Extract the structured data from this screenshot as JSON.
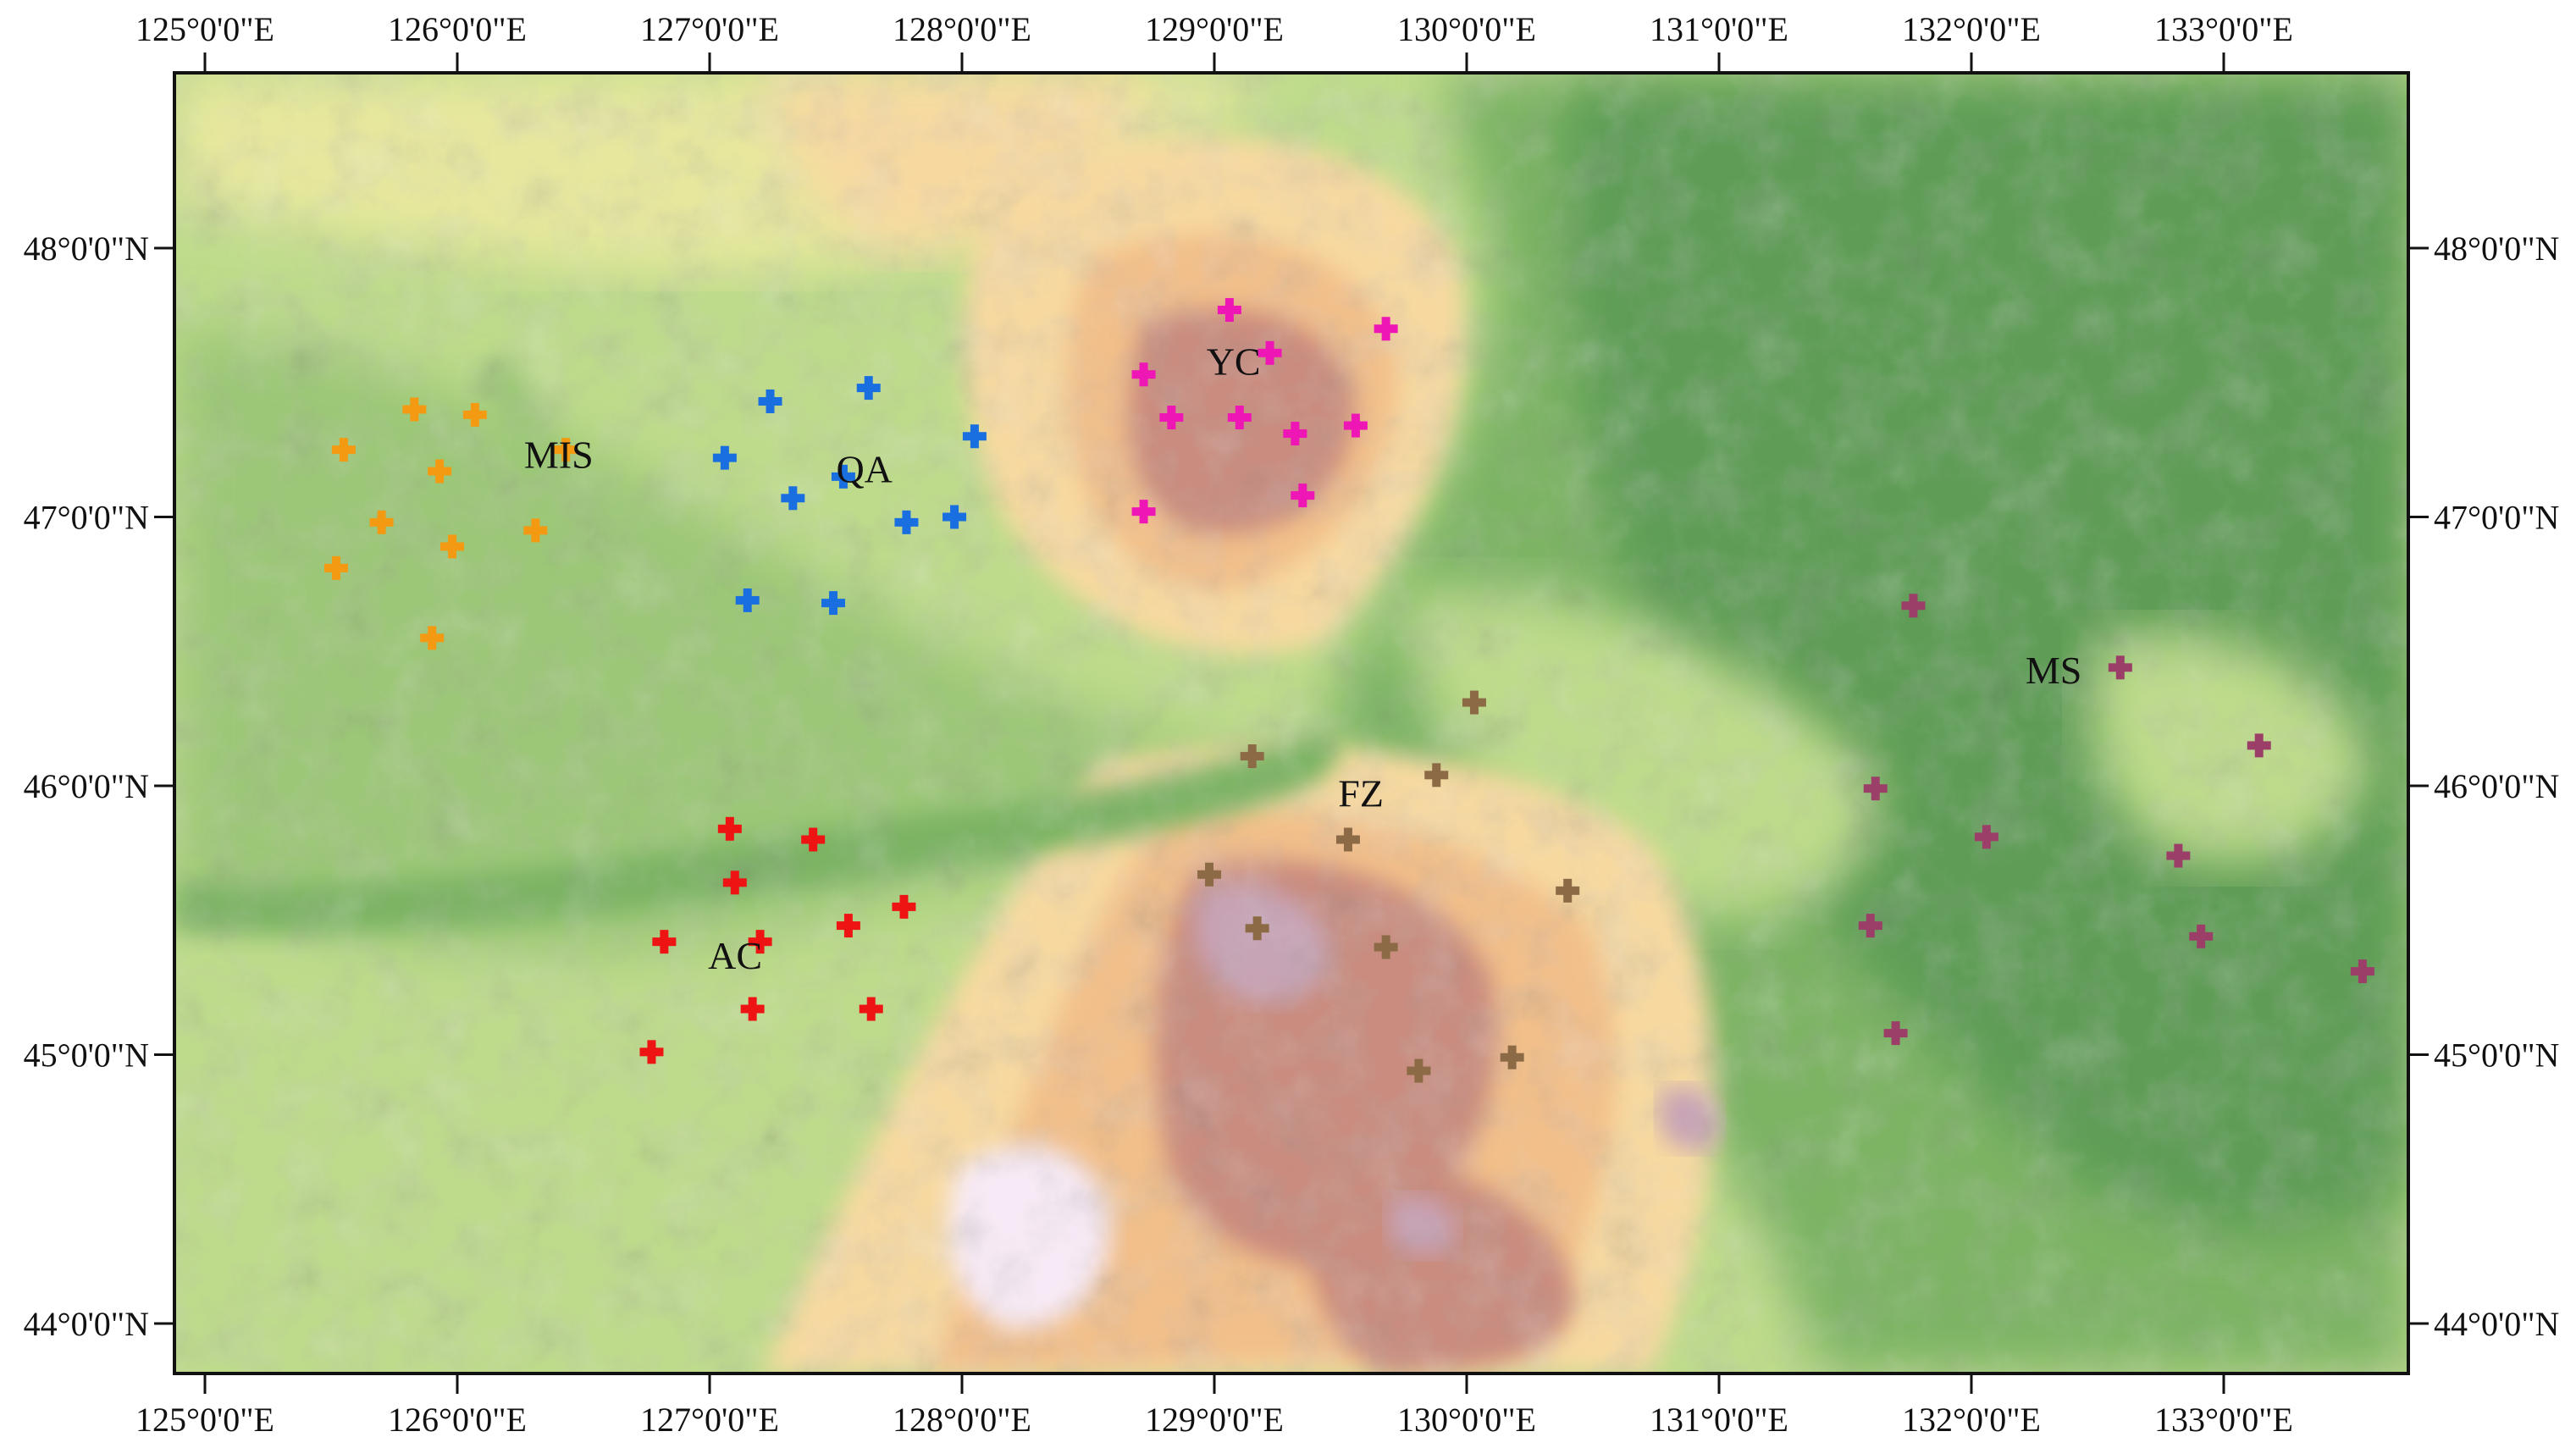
{
  "map": {
    "x_axis_labels": [
      "125°0'0\"E",
      "126°0'0\"E",
      "127°0'0\"E",
      "128°0'0\"E",
      "129°0'0\"E",
      "130°0'0\"E",
      "131°0'0\"E",
      "132°0'0\"E",
      "133°0'0\"E"
    ],
    "y_axis_labels": [
      "48°0'0\"N",
      "47°0'0\"N",
      "46°0'0\"N",
      "45°0'0\"N",
      "44°0'0\"N"
    ],
    "region_labels": [
      "MIS",
      "QA",
      "YC",
      "AC",
      "FZ",
      "MS"
    ],
    "elevation_colors": [
      "#5e9d56",
      "#7bb464",
      "#9cc777",
      "#bedb8b",
      "#e7e89d",
      "#f7d9a0",
      "#f2bf8a",
      "#c98c7f",
      "#c7a3b6",
      "#f7eaf6"
    ],
    "groups": [
      {
        "label": "MIS",
        "color": "#f39a12",
        "points": [
          [
            125.55,
            47.25
          ],
          [
            125.83,
            47.4
          ],
          [
            126.07,
            47.38
          ],
          [
            125.93,
            47.17
          ],
          [
            126.43,
            47.25
          ],
          [
            125.7,
            46.98
          ],
          [
            126.31,
            46.95
          ],
          [
            125.98,
            46.89
          ],
          [
            125.52,
            46.81
          ],
          [
            125.9,
            46.55
          ]
        ]
      },
      {
        "label": "QA",
        "color": "#1a6fe0",
        "points": [
          [
            127.24,
            47.43
          ],
          [
            127.63,
            47.48
          ],
          [
            127.06,
            47.22
          ],
          [
            127.33,
            47.07
          ],
          [
            127.53,
            47.15
          ],
          [
            128.05,
            47.3
          ],
          [
            127.78,
            46.98
          ],
          [
            127.97,
            47.0
          ],
          [
            127.15,
            46.69
          ],
          [
            127.49,
            46.68
          ]
        ]
      },
      {
        "label": "YC",
        "color": "#ee16b4",
        "points": [
          [
            129.06,
            47.77
          ],
          [
            129.22,
            47.61
          ],
          [
            129.68,
            47.7
          ],
          [
            128.72,
            47.53
          ],
          [
            128.83,
            47.37
          ],
          [
            129.1,
            47.37
          ],
          [
            129.32,
            47.31
          ],
          [
            129.56,
            47.34
          ],
          [
            129.35,
            47.08
          ],
          [
            128.72,
            47.02
          ]
        ]
      },
      {
        "label": "AC",
        "color": "#ee1414",
        "points": [
          [
            127.08,
            45.84
          ],
          [
            127.41,
            45.8
          ],
          [
            127.1,
            45.64
          ],
          [
            127.55,
            45.48
          ],
          [
            127.77,
            45.55
          ],
          [
            126.82,
            45.42
          ],
          [
            127.2,
            45.42
          ],
          [
            127.17,
            45.17
          ],
          [
            127.64,
            45.17
          ],
          [
            126.77,
            45.01
          ]
        ]
      },
      {
        "label": "FZ",
        "color": "#8b6a45",
        "points": [
          [
            130.03,
            46.31
          ],
          [
            129.15,
            46.11
          ],
          [
            129.88,
            46.04
          ],
          [
            129.53,
            45.8
          ],
          [
            128.98,
            45.67
          ],
          [
            130.4,
            45.61
          ],
          [
            129.17,
            45.47
          ],
          [
            129.68,
            45.4
          ],
          [
            129.81,
            44.94
          ],
          [
            130.18,
            44.99
          ]
        ]
      },
      {
        "label": "MS",
        "color": "#9b3f69",
        "points": [
          [
            131.77,
            46.67
          ],
          [
            132.59,
            46.44
          ],
          [
            131.62,
            45.99
          ],
          [
            133.14,
            46.15
          ],
          [
            132.06,
            45.81
          ],
          [
            132.82,
            45.74
          ],
          [
            131.6,
            45.48
          ],
          [
            132.91,
            45.44
          ],
          [
            133.55,
            45.31
          ],
          [
            131.7,
            45.08
          ]
        ]
      }
    ]
  }
}
